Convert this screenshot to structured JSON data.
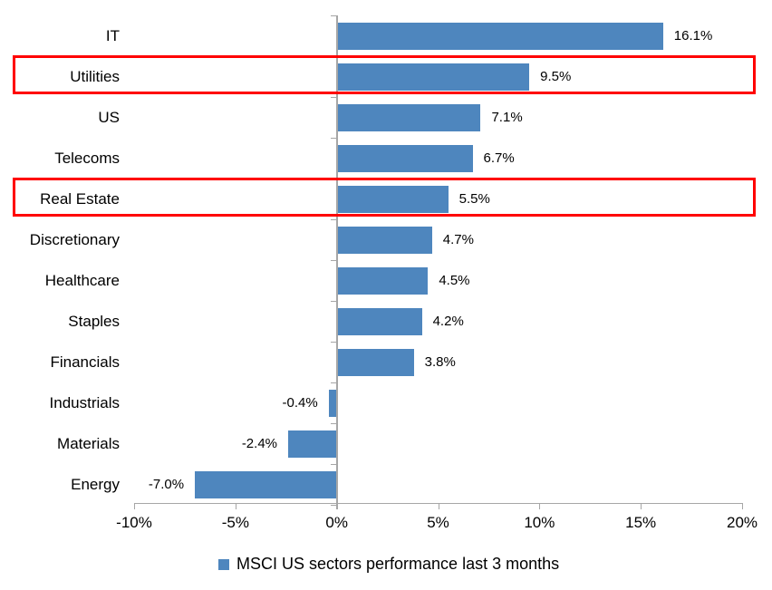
{
  "chart_data": {
    "type": "bar",
    "orientation": "horizontal",
    "title": "",
    "xlabel": "",
    "ylabel": "",
    "categories": [
      "IT",
      "Utilities",
      "US",
      "Telecoms",
      "Real Estate",
      "Discretionary",
      "Healthcare",
      "Staples",
      "Financials",
      "Industrials",
      "Materials",
      "Energy"
    ],
    "values": [
      16.1,
      9.5,
      7.1,
      6.7,
      5.5,
      4.7,
      4.5,
      4.2,
      3.8,
      -0.4,
      -2.4,
      -7.0
    ],
    "value_labels": [
      "16.1%",
      "9.5%",
      "7.1%",
      "6.7%",
      "5.5%",
      "4.7%",
      "4.5%",
      "4.2%",
      "3.8%",
      "-0.4%",
      "-2.4%",
      "-7.0%"
    ],
    "xlim": [
      -10,
      20
    ],
    "x_ticks": [
      -10,
      -5,
      0,
      5,
      10,
      15,
      20
    ],
    "x_tick_labels": [
      "-10%",
      "-5%",
      "0%",
      "5%",
      "10%",
      "15%",
      "20%"
    ],
    "grid": false,
    "legend_position": "bottom",
    "series": [
      {
        "name": "MSCI US sectors performance last 3 months",
        "color": "#4E86BE"
      }
    ],
    "highlighted_categories": [
      "Utilities",
      "Real Estate"
    ],
    "highlight_color": "#FF0000",
    "axis_color": "#A6A6A6"
  },
  "legend": {
    "label": "MSCI US sectors performance last 3 months",
    "swatch_color": "#4E86BE"
  }
}
